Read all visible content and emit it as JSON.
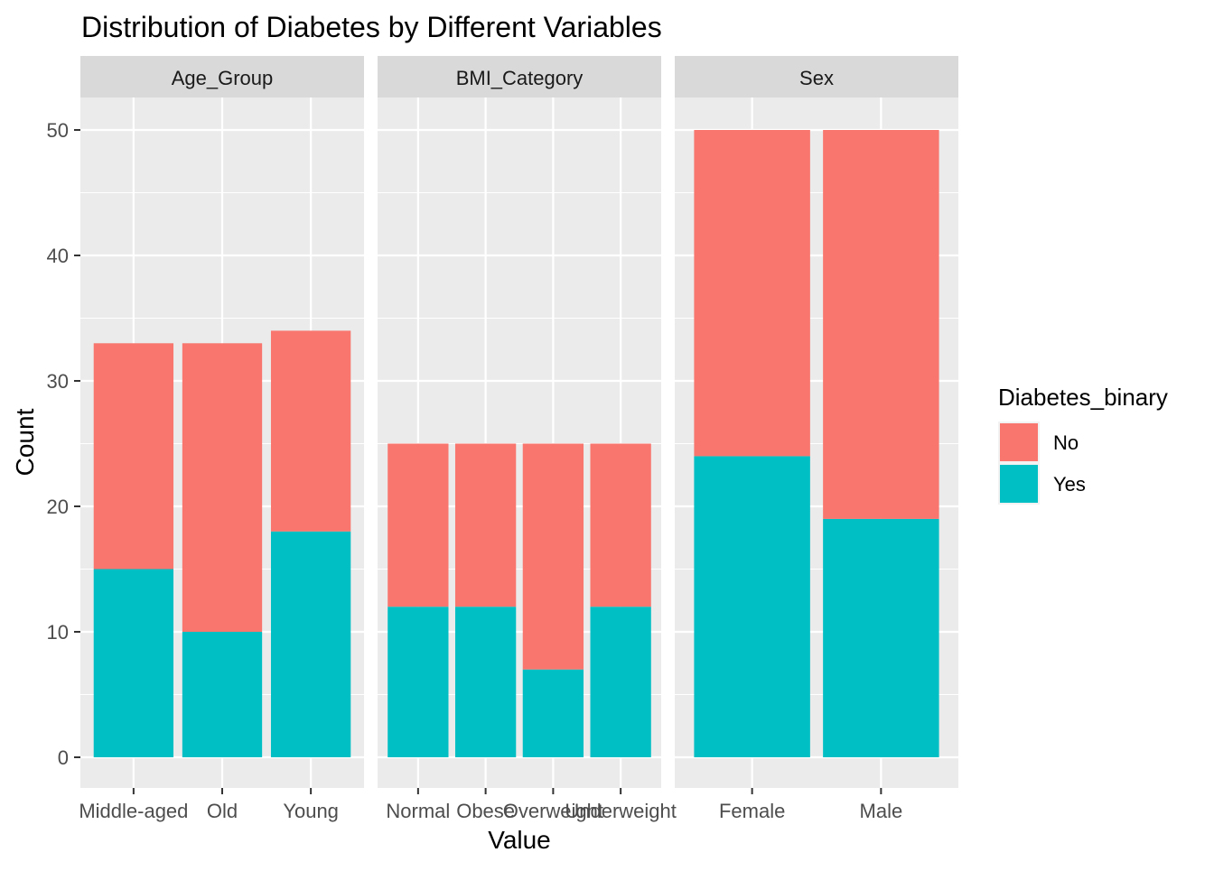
{
  "chart_data": {
    "type": "bar",
    "stacked": true,
    "faceted": true,
    "title": "Distribution of Diabetes by Different Variables",
    "xlabel": "Value",
    "ylabel": "Count",
    "ylim": [
      0,
      52.5
    ],
    "yticks": [
      0,
      10,
      20,
      30,
      40,
      50
    ],
    "grid": true,
    "legend": {
      "title": "Diabetes_binary",
      "position": "right",
      "entries": [
        {
          "label": "No",
          "color": "#F8766D"
        },
        {
          "label": "Yes",
          "color": "#00BFC4"
        }
      ]
    },
    "colors": {
      "No": "#F8766D",
      "Yes": "#00BFC4",
      "panel_bg": "#EBEBEB",
      "strip_bg": "#D9D9D9"
    },
    "facets": [
      {
        "name": "Age_Group",
        "categories": [
          "Middle-aged",
          "Old",
          "Young"
        ],
        "series": [
          {
            "name": "Yes",
            "values": [
              15,
              10,
              18
            ]
          },
          {
            "name": "No",
            "values": [
              18,
              23,
              16
            ]
          }
        ]
      },
      {
        "name": "BMI_Category",
        "categories": [
          "Normal",
          "Obese",
          "Overweight",
          "Underweight"
        ],
        "series": [
          {
            "name": "Yes",
            "values": [
              12,
              12,
              7,
              12
            ]
          },
          {
            "name": "No",
            "values": [
              13,
              13,
              18,
              13
            ]
          }
        ]
      },
      {
        "name": "Sex",
        "categories": [
          "Female",
          "Male"
        ],
        "series": [
          {
            "name": "Yes",
            "values": [
              24,
              19
            ]
          },
          {
            "name": "No",
            "values": [
              26,
              31
            ]
          }
        ]
      }
    ]
  }
}
